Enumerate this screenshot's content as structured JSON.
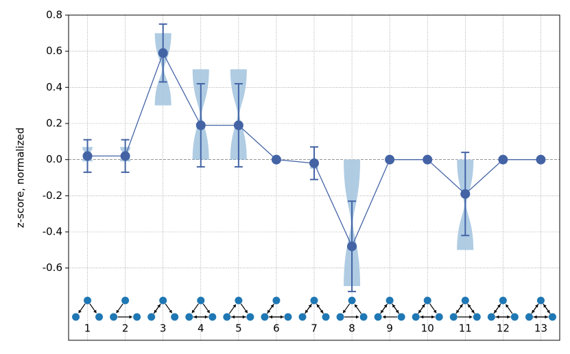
{
  "chart_data": {
    "type": "line",
    "ylabel": "z-score, normalized",
    "categories": [
      "1",
      "2",
      "3",
      "4",
      "5",
      "6",
      "7",
      "8",
      "9",
      "10",
      "11",
      "12",
      "13"
    ],
    "values": [
      0.02,
      0.02,
      0.59,
      0.19,
      0.19,
      0.0,
      -0.02,
      -0.48,
      0.0,
      0.0,
      -0.19,
      0.0,
      0.0
    ],
    "errors": [
      0.09,
      0.09,
      0.16,
      0.23,
      0.23,
      0,
      0.09,
      0.25,
      0,
      0,
      0.23,
      0,
      0
    ],
    "violin_min": [
      -0.01,
      -0.01,
      0.3,
      0.0,
      0.0,
      null,
      -0.05,
      -0.7,
      null,
      null,
      -0.5,
      null,
      null
    ],
    "violin_max": [
      0.07,
      0.07,
      0.7,
      0.5,
      0.5,
      null,
      0.0,
      0.0,
      null,
      null,
      0.0,
      null,
      null
    ],
    "color": "#4363a5",
    "violin_color": "#a6c6e0",
    "ylim": [
      -1.0,
      0.8
    ],
    "yticks": [
      0.8,
      0.6,
      0.4,
      0.2,
      {
        "value": 0,
        "label": "0.0"
      },
      -0.2,
      -0.4,
      -0.6
    ],
    "grid": true
  }
}
